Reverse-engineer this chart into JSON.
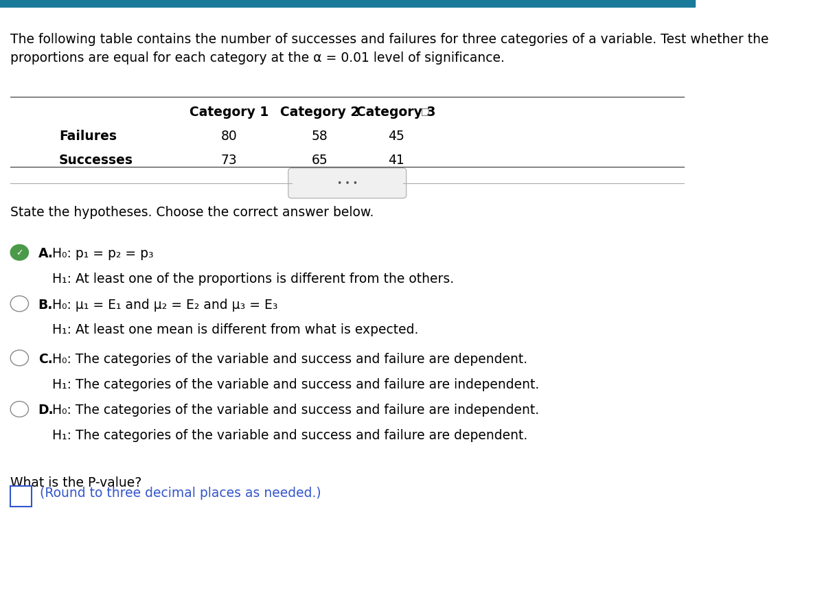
{
  "bg_color": "#ffffff",
  "top_bar_color": "#1a7a9a",
  "intro_text": "The following table contains the number of successes and failures for three categories of a variable. Test whether the\nproportions are equal for each category at the α = 0.01 level of significance.",
  "table": {
    "col_headers": [
      "",
      "Category 1",
      "Category 2",
      "Category 3"
    ],
    "rows": [
      [
        "Failures",
        "80",
        "58",
        "45"
      ],
      [
        "Successes",
        "73",
        "65",
        "41"
      ]
    ]
  },
  "divider_text": "• • •",
  "state_hyp_text": "State the hypotheses. Choose the correct answer below.",
  "options": [
    {
      "label": "A.",
      "selected": true,
      "line1": "H₀: p₁ = p₂ = p₃",
      "line2": "H₁: At least one of the proportions is different from the others."
    },
    {
      "label": "B.",
      "selected": false,
      "line1": "H₀: μ₁ = E₁ and μ₂ = E₂ and μ₃ = E₃",
      "line2": "H₁: At least one mean is different from what is expected."
    },
    {
      "label": "C.",
      "selected": false,
      "line1": "H₀: The categories of the variable and success and failure are dependent.",
      "line2": "H₁: The categories of the variable and success and failure are independent."
    },
    {
      "label": "D.",
      "selected": false,
      "line1": "H₀: The categories of the variable and success and failure are independent.",
      "line2": "H₁: The categories of the variable and success and failure are dependent."
    }
  ],
  "pvalue_question": "What is the P-value?",
  "pvalue_hint": "(Round to three decimal places as needed.)",
  "pvalue_hint_color": "#3355cc",
  "input_box_color": "#3355cc",
  "normal_text_color": "#000000",
  "selected_check_color": "#4a9a4a",
  "unselected_circle_color": "#888888",
  "font_size_intro": 13.5,
  "font_size_table_header": 13.5,
  "font_size_table_data": 13.5,
  "font_size_options": 13.5,
  "font_size_question": 13.5
}
